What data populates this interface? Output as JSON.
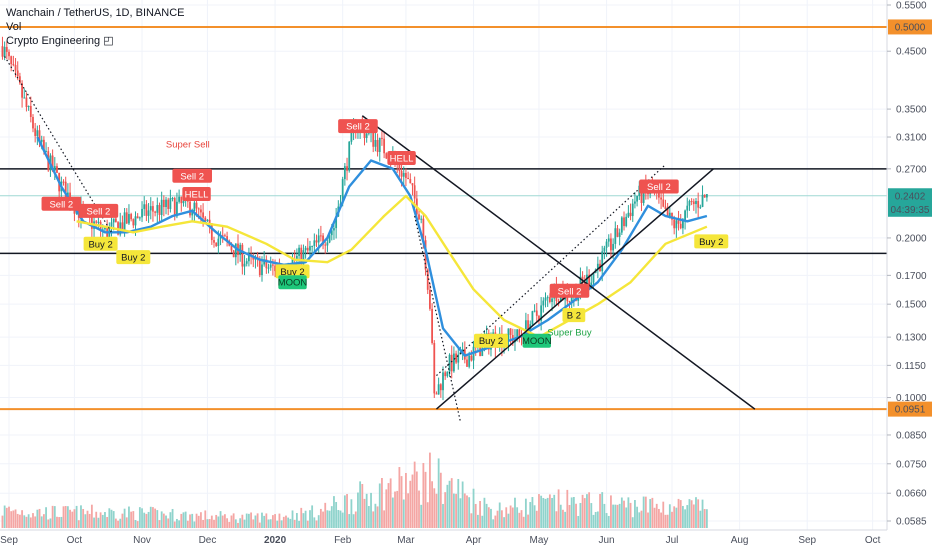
{
  "legend": {
    "title": "Wanchain / TetherUS, 1D, BINANCE",
    "vol": "Vol",
    "indicator": "Crypto Engineering ◰"
  },
  "chart_data": {
    "type": "candlestick",
    "title": "Wanchain / TetherUS, 1D, BINANCE",
    "log_scale": true,
    "ylim": [
      0.0585,
      0.55
    ],
    "y_ticks": [
      "0.5500",
      "0.4500",
      "0.3500",
      "0.3100",
      "0.2700",
      "0.2000",
      "0.1700",
      "0.1500",
      "0.1300",
      "0.1150",
      "0.1000",
      "0.0850",
      "0.0750",
      "0.0660",
      "0.0585"
    ],
    "x_ticks": [
      "Sep",
      "Oct",
      "Nov",
      "Dec",
      "2020",
      "Feb",
      "Mar",
      "Apr",
      "May",
      "Jun",
      "Jul",
      "Aug",
      "Sep",
      "Oct"
    ],
    "x_tick_bold": [
      "2020"
    ],
    "date_range": [
      "2019-08-29",
      "2020-07-17"
    ],
    "price_path": [
      [
        "2019-08-29",
        0.46
      ],
      [
        "2019-09-06",
        0.38
      ],
      [
        "2019-09-15",
        0.3
      ],
      [
        "2019-09-25",
        0.25
      ],
      [
        "2019-10-05",
        0.22
      ],
      [
        "2019-10-15",
        0.205
      ],
      [
        "2019-10-25",
        0.215
      ],
      [
        "2019-11-05",
        0.225
      ],
      [
        "2019-11-15",
        0.23
      ],
      [
        "2019-11-24",
        0.23
      ],
      [
        "2019-12-02",
        0.205
      ],
      [
        "2019-12-10",
        0.195
      ],
      [
        "2019-12-20",
        0.18
      ],
      [
        "2019-12-30",
        0.175
      ],
      [
        "2020-01-08",
        0.18
      ],
      [
        "2020-01-18",
        0.19
      ],
      [
        "2020-01-28",
        0.21
      ],
      [
        "2020-02-03",
        0.28
      ],
      [
        "2020-02-07",
        0.33
      ],
      [
        "2020-02-14",
        0.31
      ],
      [
        "2020-02-22",
        0.29
      ],
      [
        "2020-03-01",
        0.26
      ],
      [
        "2020-03-08",
        0.22
      ],
      [
        "2020-03-12",
        0.15
      ],
      [
        "2020-03-14",
        0.1
      ],
      [
        "2020-03-20",
        0.115
      ],
      [
        "2020-03-30",
        0.12
      ],
      [
        "2020-04-10",
        0.13
      ],
      [
        "2020-04-22",
        0.13
      ],
      [
        "2020-05-01",
        0.145
      ],
      [
        "2020-05-08",
        0.16
      ],
      [
        "2020-05-15",
        0.155
      ],
      [
        "2020-05-25",
        0.17
      ],
      [
        "2020-06-05",
        0.2
      ],
      [
        "2020-06-15",
        0.24
      ],
      [
        "2020-06-22",
        0.245
      ],
      [
        "2020-06-28",
        0.22
      ],
      [
        "2020-07-03",
        0.21
      ],
      [
        "2020-07-10",
        0.23
      ],
      [
        "2020-07-17",
        0.24
      ]
    ],
    "volume_level": [
      [
        "2019-08-29",
        0.35
      ],
      [
        "2019-09-20",
        0.3
      ],
      [
        "2019-10-20",
        0.3
      ],
      [
        "2019-11-20",
        0.25
      ],
      [
        "2019-12-20",
        0.2
      ],
      [
        "2020-01-20",
        0.3
      ],
      [
        "2020-02-05",
        0.55
      ],
      [
        "2020-03-13",
        1.0
      ],
      [
        "2020-04-10",
        0.35
      ],
      [
        "2020-05-10",
        0.5
      ],
      [
        "2020-06-10",
        0.45
      ],
      [
        "2020-07-17",
        0.4
      ]
    ],
    "moving_averages": [
      {
        "color": "#2f8fdd",
        "points": [
          [
            "2019-09-14",
            0.31
          ],
          [
            "2019-09-25",
            0.25
          ],
          [
            "2019-10-05",
            0.215
          ],
          [
            "2019-10-15",
            0.205
          ],
          [
            "2019-10-25",
            0.205
          ],
          [
            "2019-11-05",
            0.21
          ],
          [
            "2019-11-15",
            0.22
          ],
          [
            "2019-11-24",
            0.225
          ],
          [
            "2019-12-05",
            0.205
          ],
          [
            "2019-12-15",
            0.19
          ],
          [
            "2019-12-25",
            0.182
          ],
          [
            "2020-01-05",
            0.178
          ],
          [
            "2020-01-15",
            0.18
          ],
          [
            "2020-01-25",
            0.2
          ],
          [
            "2020-02-04",
            0.25
          ],
          [
            "2020-02-14",
            0.28
          ],
          [
            "2020-02-24",
            0.27
          ],
          [
            "2020-03-03",
            0.24
          ],
          [
            "2020-03-10",
            0.19
          ],
          [
            "2020-03-18",
            0.135
          ],
          [
            "2020-03-28",
            0.12
          ],
          [
            "2020-04-10",
            0.125
          ],
          [
            "2020-04-22",
            0.13
          ],
          [
            "2020-05-05",
            0.14
          ],
          [
            "2020-05-15",
            0.15
          ],
          [
            "2020-05-28",
            0.165
          ],
          [
            "2020-06-08",
            0.19
          ],
          [
            "2020-06-20",
            0.23
          ],
          [
            "2020-06-28",
            0.22
          ],
          [
            "2020-07-08",
            0.215
          ],
          [
            "2020-07-17",
            0.22
          ]
        ]
      },
      {
        "color": "#f5e63a",
        "points": [
          [
            "2019-10-02",
            0.215
          ],
          [
            "2019-10-15",
            0.21
          ],
          [
            "2019-10-28",
            0.205
          ],
          [
            "2019-11-10",
            0.21
          ],
          [
            "2019-11-24",
            0.215
          ],
          [
            "2019-12-10",
            0.21
          ],
          [
            "2019-12-28",
            0.195
          ],
          [
            "2020-01-10",
            0.182
          ],
          [
            "2020-01-25",
            0.18
          ],
          [
            "2020-02-05",
            0.19
          ],
          [
            "2020-02-20",
            0.22
          ],
          [
            "2020-03-01",
            0.24
          ],
          [
            "2020-03-10",
            0.22
          ],
          [
            "2020-03-20",
            0.19
          ],
          [
            "2020-04-01",
            0.16
          ],
          [
            "2020-04-15",
            0.14
          ],
          [
            "2020-05-01",
            0.13
          ],
          [
            "2020-05-15",
            0.14
          ],
          [
            "2020-05-28",
            0.15
          ],
          [
            "2020-06-12",
            0.165
          ],
          [
            "2020-06-28",
            0.195
          ],
          [
            "2020-07-17",
            0.21
          ]
        ]
      }
    ],
    "price_labels": [
      {
        "text": "0.5000",
        "value": 0.5,
        "bg": "#f3902b",
        "fg": "#ffffff"
      },
      {
        "text": "0.2402",
        "value": 0.2402,
        "bg": "#26a69a",
        "fg": "#ffffff"
      },
      {
        "text": "04:39:35",
        "value": 0.2265,
        "bg": "#26a69a",
        "fg": "#ffffff"
      },
      {
        "text": "0.0951",
        "value": 0.0951,
        "bg": "#f3902b",
        "fg": "#ffffff"
      }
    ],
    "horizontal_lines": [
      {
        "value": 0.5,
        "color": "#f3902b",
        "width": 2
      },
      {
        "value": 0.27,
        "color": "#131722",
        "width": 1.5
      },
      {
        "value": 0.187,
        "color": "#131722",
        "width": 1.5
      },
      {
        "value": 0.0951,
        "color": "#f3902b",
        "width": 2
      },
      {
        "value": 0.2402,
        "color": "#9fd8d3",
        "width": 1
      }
    ],
    "trend_lines": [
      {
        "from": [
          "2019-08-30",
          0.44
        ],
        "to": [
          "2019-10-18",
          0.205
        ],
        "style": "dotted"
      },
      {
        "from": [
          "2020-02-10",
          0.34
        ],
        "to": [
          "2020-08-08",
          0.0951
        ],
        "style": "solid"
      },
      {
        "from": [
          "2020-03-15",
          0.0951
        ],
        "to": [
          "2020-07-20",
          0.27
        ],
        "style": "solid"
      },
      {
        "from": [
          "2020-03-15",
          0.11
        ],
        "to": [
          "2020-06-28",
          0.275
        ],
        "style": "dotted"
      },
      {
        "from": [
          "2020-03-05",
          0.22
        ],
        "to": [
          "2020-03-26",
          0.09
        ],
        "style": "dotted"
      }
    ],
    "signals": [
      {
        "text": "Sell 2",
        "type": "sell",
        "date": "2019-09-25",
        "value": 0.232
      },
      {
        "text": "Sell 2",
        "type": "sell",
        "date": "2019-10-12",
        "value": 0.225
      },
      {
        "text": "Buy 2",
        "type": "buy",
        "date": "2019-10-13",
        "value": 0.195
      },
      {
        "text": "Buy 2",
        "type": "buy",
        "date": "2019-10-28",
        "value": 0.184
      },
      {
        "text": "Sell 2",
        "type": "sell",
        "date": "2019-11-24",
        "value": 0.262
      },
      {
        "text": "HELL",
        "type": "sell",
        "date": "2019-11-26",
        "value": 0.242
      },
      {
        "text": "Buy 2",
        "type": "buy",
        "date": "2020-01-09",
        "value": 0.173
      },
      {
        "text": "MOON",
        "type": "moon",
        "date": "2020-01-09",
        "value": 0.165
      },
      {
        "text": "Sell 2",
        "type": "sell",
        "date": "2020-02-08",
        "value": 0.325
      },
      {
        "text": "HELL",
        "type": "sell",
        "date": "2020-02-28",
        "value": 0.283
      },
      {
        "text": "Buy 2",
        "type": "buy",
        "date": "2020-04-09",
        "value": 0.128
      },
      {
        "text": "MOON",
        "type": "moon",
        "date": "2020-04-30",
        "value": 0.128
      },
      {
        "text": "Sell 2",
        "type": "sell",
        "date": "2020-05-15",
        "value": 0.159
      },
      {
        "text": "B 2",
        "type": "buy",
        "date": "2020-05-17",
        "value": 0.143
      },
      {
        "text": "Sell 2",
        "type": "sell",
        "date": "2020-06-25",
        "value": 0.25
      },
      {
        "text": "Buy 2",
        "type": "buy",
        "date": "2020-07-19",
        "value": 0.197
      }
    ],
    "annotations": [
      {
        "text": "Super Sell",
        "color": "#e8453c",
        "date": "2019-11-22",
        "value": 0.296
      },
      {
        "text": "Super Buy",
        "color": "#1fa346",
        "date": "2020-05-15",
        "value": 0.131
      }
    ],
    "colors": {
      "up": "#26a69a",
      "down": "#ef5350",
      "sell": "#ef5350",
      "buy": "#f5e63a",
      "moon": "#1ec77a"
    }
  }
}
